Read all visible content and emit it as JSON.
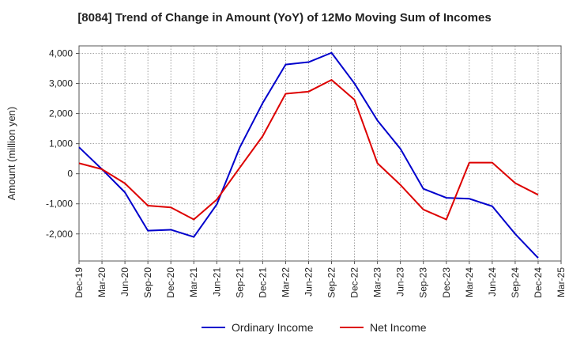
{
  "chart_data": {
    "type": "line",
    "title": "[8084]  Trend of Change in Amount (YoY) of 12Mo Moving Sum of Incomes",
    "xlabel": "",
    "ylabel": "Amount (million yen)",
    "categories": [
      "Dec-19",
      "Mar-20",
      "Jun-20",
      "Sep-20",
      "Dec-20",
      "Mar-21",
      "Jun-21",
      "Sep-21",
      "Dec-21",
      "Mar-22",
      "Jun-22",
      "Sep-22",
      "Dec-22",
      "Mar-23",
      "Jun-23",
      "Sep-23",
      "Dec-23",
      "Mar-24",
      "Jun-24",
      "Sep-24",
      "Dec-24",
      "Mar-25"
    ],
    "y_ticks": [
      4000,
      3000,
      2000,
      1000,
      0,
      -1000,
      -2000
    ],
    "y_tick_labels": [
      "4,000",
      "3,000",
      "2,000",
      "1,000",
      "0",
      "-1,000",
      "-2,000"
    ],
    "ylim": [
      -2900,
      4250
    ],
    "grid": true,
    "legend_position": "bottom",
    "series": [
      {
        "name": "Ordinary Income",
        "color": "#0000cc",
        "values": [
          880,
          150,
          -620,
          -1890,
          -1860,
          -2100,
          -1020,
          870,
          2350,
          3630,
          3710,
          4020,
          3000,
          1770,
          830,
          -500,
          -800,
          -830,
          -1080,
          -2000,
          -2800,
          null
        ]
      },
      {
        "name": "Net Income",
        "color": "#dd0000",
        "values": [
          350,
          150,
          -320,
          -1060,
          -1120,
          -1520,
          -860,
          200,
          1250,
          2660,
          2730,
          3120,
          2460,
          350,
          -370,
          -1190,
          -1520,
          370,
          370,
          -310,
          -700,
          null
        ]
      }
    ]
  }
}
